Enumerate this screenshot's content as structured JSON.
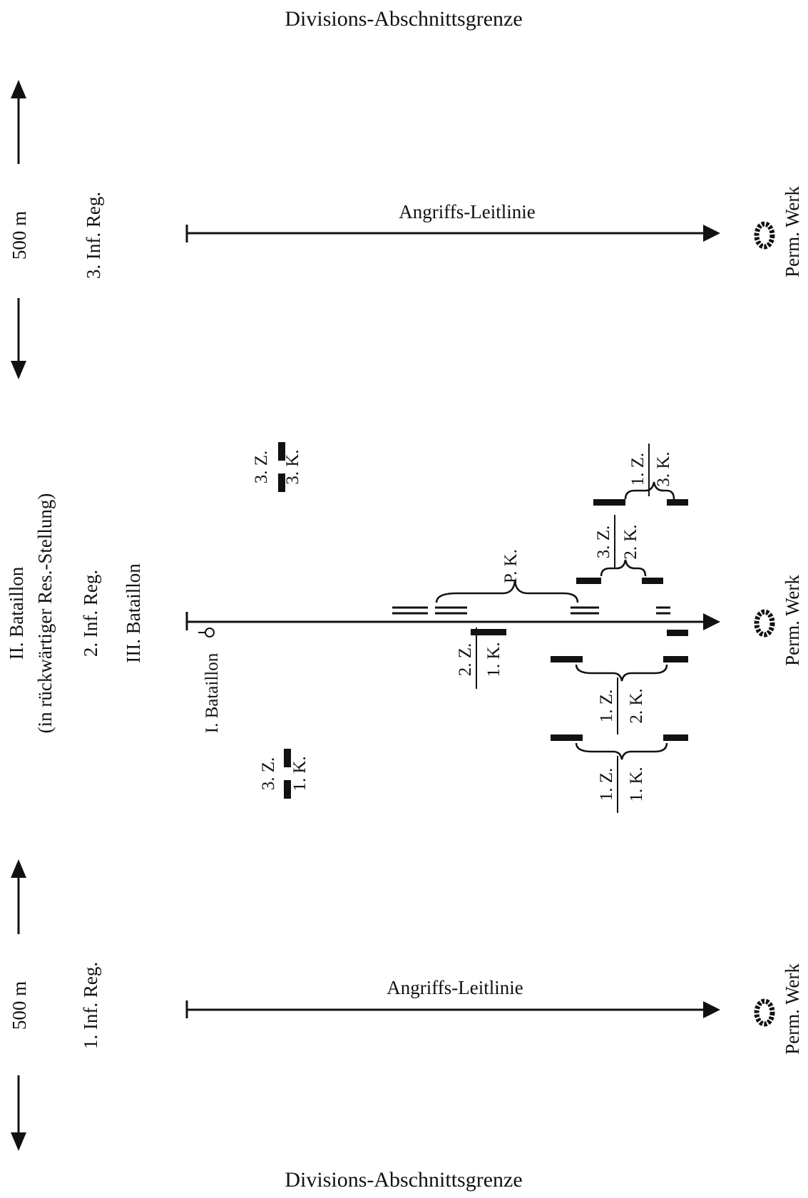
{
  "boundary": {
    "top": "Divisions-Abschnittsgrenze",
    "bottom": "Divisions-Abschnittsgrenze"
  },
  "regiments": {
    "reg3": {
      "name": "3. Inf. Reg.",
      "width": "500 m",
      "line": "Angriffs-Leitlinie",
      "target": "Perm. Werk"
    },
    "reg2": {
      "name": "2. Inf. Reg.",
      "battalion_2": "II. Bataillon",
      "battalion_2_note": "(in rückwärtiger Res.-Stellung)",
      "battalion_3": "III. Bataillon",
      "battalion_1": "I. Bataillon",
      "target": "Perm. Werk"
    },
    "reg1": {
      "name": "1. Inf. Reg.",
      "width": "500 m",
      "line": "Angriffs-Leitlinie",
      "target": "Perm. Werk"
    }
  },
  "units": {
    "z3_k3": {
      "zug": "3. Z.",
      "kompanie": "3. K."
    },
    "z3_k1": {
      "zug": "3. Z.",
      "kompanie": "1. K."
    },
    "pk": "P. K.",
    "z2_k": {
      "zug": "2. Z.",
      "kompanie": "1. K."
    },
    "z1_k3": {
      "zug": "1. Z.",
      "kompanie": "3. K."
    },
    "z3_k2": {
      "zug": "3. Z.",
      "kompanie": "2. K."
    },
    "z1_k2": {
      "zug": "1. Z.",
      "kompanie": "2. K."
    },
    "z1_k1": {
      "zug": "1. Z.",
      "kompanie": "1. K."
    }
  }
}
